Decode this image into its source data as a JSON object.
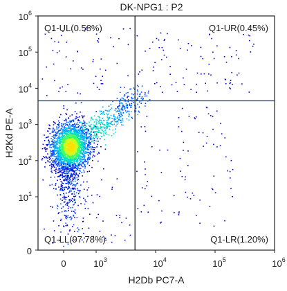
{
  "chart_data": {
    "type": "scatter",
    "title": "DK-NPG1 : P2",
    "xlabel": "H2Db PC7-A",
    "ylabel": "H2Kd PE-A",
    "scale": "biexponential (logicle)",
    "xlim": [
      -400,
      1000000
    ],
    "ylim": [
      0,
      1000000
    ],
    "x_ticks": [
      {
        "value": 0,
        "base": "0",
        "exp": ""
      },
      {
        "value": 1000,
        "base": "10",
        "exp": "3"
      },
      {
        "value": 10000,
        "base": "10",
        "exp": "4"
      },
      {
        "value": 100000,
        "base": "10",
        "exp": "5"
      },
      {
        "value": 1000000,
        "base": "10",
        "exp": "6"
      }
    ],
    "y_ticks": [
      {
        "value": 0,
        "base": "0",
        "exp": ""
      },
      {
        "value": 10,
        "base": "10",
        "exp": "1"
      },
      {
        "value": 100,
        "base": "10",
        "exp": "2"
      },
      {
        "value": 1000,
        "base": "10",
        "exp": "3"
      },
      {
        "value": 10000,
        "base": "10",
        "exp": "4"
      },
      {
        "value": 100000,
        "base": "10",
        "exp": "5"
      },
      {
        "value": 1000000,
        "base": "10",
        "exp": "6"
      }
    ],
    "gates": {
      "x": 4500,
      "y": 4500
    },
    "quadrants": [
      {
        "name": "Q1-UL",
        "text": "Q1-UL(0.58%)",
        "percent": 0.58,
        "pos": "top-left"
      },
      {
        "name": "Q1-UR",
        "text": "Q1-UR(0.45%)",
        "percent": 0.45,
        "pos": "top-right"
      },
      {
        "name": "Q1-LL",
        "text": "Q1-LL(97.78%)",
        "percent": 97.78,
        "pos": "bottom-left"
      },
      {
        "name": "Q1-LR",
        "text": "Q1-LR(1.20%)",
        "percent": 1.2,
        "pos": "bottom-right"
      }
    ],
    "population": {
      "center_x": 200,
      "center_y": 250
    },
    "colormap": [
      "#0000c8",
      "#0050ff",
      "#00a8ff",
      "#00e0c0",
      "#40ff60",
      "#c8ff20",
      "#ffe000"
    ]
  }
}
